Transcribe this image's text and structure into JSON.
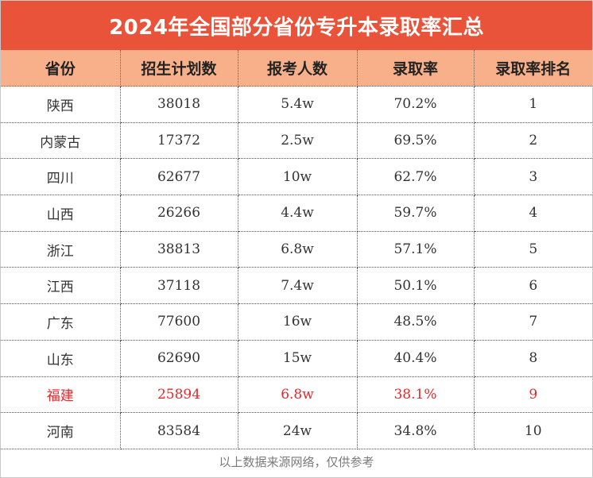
{
  "title": "2024年全国部分省份专升本录取率汇总",
  "headers": [
    "省份",
    "招生计划数",
    "报考人数",
    "录取率",
    "录取率排名"
  ],
  "rows": [
    {
      "province": "陕西",
      "plan": "38018",
      "applicants": "5.4w",
      "rate": "70.2%",
      "rank": "1"
    },
    {
      "province": "内蒙古",
      "plan": "17372",
      "applicants": "2.5w",
      "rate": "69.5%",
      "rank": "2"
    },
    {
      "province": "四川",
      "plan": "62677",
      "applicants": "10w",
      "rate": "62.7%",
      "rank": "3"
    },
    {
      "province": "山西",
      "plan": "26266",
      "applicants": "4.4w",
      "rate": "59.7%",
      "rank": "4"
    },
    {
      "province": "浙江",
      "plan": "38813",
      "applicants": "6.8w",
      "rate": "57.1%",
      "rank": "5"
    },
    {
      "province": "江西",
      "plan": "37118",
      "applicants": "7.4w",
      "rate": "50.1%",
      "rank": "6"
    },
    {
      "province": "广东",
      "plan": "77600",
      "applicants": "16w",
      "rate": "48.5%",
      "rank": "7"
    },
    {
      "province": "山东",
      "plan": "62690",
      "applicants": "15w",
      "rate": "40.4%",
      "rank": "8"
    },
    {
      "province": "福建",
      "plan": "25894",
      "applicants": "6.8w",
      "rate": "38.1%",
      "rank": "9",
      "highlight": true
    },
    {
      "province": "河南",
      "plan": "83584",
      "applicants": "24w",
      "rate": "34.8%",
      "rank": "10"
    }
  ],
  "highlight_color": "#e8262a",
  "title_bg": "#e8533a",
  "header_bg": "#f7b08a",
  "footer": "以上数据来源网络，仅供参考"
}
